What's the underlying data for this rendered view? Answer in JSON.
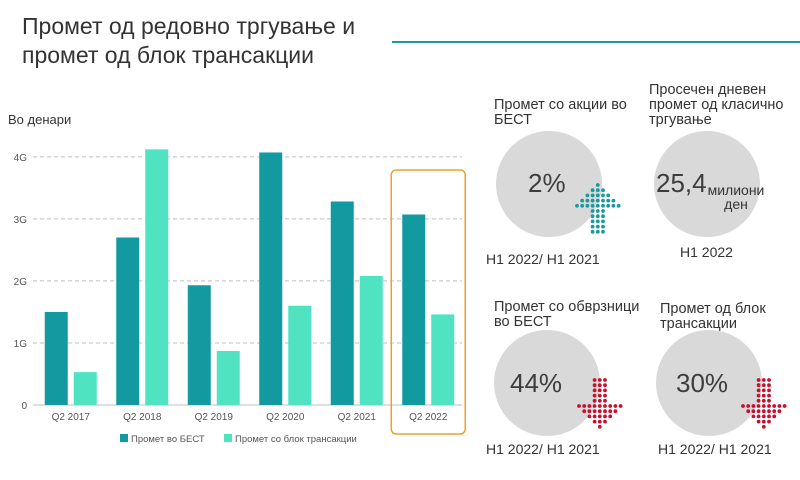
{
  "title": "Промет од редовно тргување и промет од блок трансакции",
  "colors": {
    "accent_line": "#1a9aa0",
    "series_best": "#129aa0",
    "series_block": "#4fe3c1",
    "highlight_box": "#f0a02a",
    "arrow_up": "#1a9aa0",
    "arrow_down": "#c8102e",
    "circle": "#d9d9d9"
  },
  "chart_data": {
    "type": "bar",
    "ylabel": "Во денари",
    "categories": [
      "Q2 2017",
      "Q2 2018",
      "Q2 2019",
      "Q2 2020",
      "Q2 2021",
      "Q2 2022"
    ],
    "series": [
      {
        "name": "Промет во БЕСТ",
        "values": [
          1.5,
          2.7,
          1.93,
          4.07,
          3.28,
          3.07
        ]
      },
      {
        "name": "Промет со блок трансакции",
        "values": [
          0.53,
          4.12,
          0.87,
          1.6,
          2.08,
          1.46
        ]
      }
    ],
    "ylim": [
      0,
      4.4
    ],
    "yticks": [
      {
        "value": 0,
        "label": "0"
      },
      {
        "value": 1,
        "label": "1G"
      },
      {
        "value": 2,
        "label": "2G"
      },
      {
        "value": 3,
        "label": "3G"
      },
      {
        "value": 4,
        "label": "4G"
      }
    ],
    "grid": true,
    "legend_position": "bottom",
    "highlighted_category": "Q2 2022"
  },
  "kpis": [
    {
      "title": "Промет со акции во БЕСТ",
      "value": "2%",
      "unit": "",
      "period": "H1 2022/ H1 2021",
      "arrow": "up",
      "arrow_icon": "dotted-up-arrow-icon"
    },
    {
      "title": "Просечен дневен промет од класично тргување",
      "value": "25,4",
      "unit": "милиони ден",
      "period": "H1 2022",
      "arrow": "none",
      "arrow_icon": ""
    },
    {
      "title": "Промет со обврзници во БЕСТ",
      "value": "44%",
      "unit": "",
      "period": "H1 2022/ H1 2021",
      "arrow": "down",
      "arrow_icon": "dotted-down-arrow-icon"
    },
    {
      "title": "Промет од блок трансакции",
      "value": "30%",
      "unit": "",
      "period": "H1 2022/ H1 2021",
      "arrow": "down",
      "arrow_icon": "dotted-down-arrow-icon"
    }
  ]
}
